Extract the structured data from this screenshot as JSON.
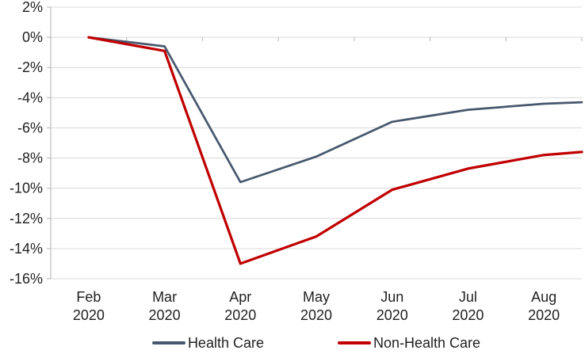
{
  "chart_data": {
    "type": "line",
    "categories": [
      "Feb 2020",
      "Mar 2020",
      "Apr 2020",
      "May 2020",
      "Jun 2020",
      "Jul 2020",
      "Aug 2020"
    ],
    "x_label_lines": [
      [
        "Feb",
        "2020"
      ],
      [
        "Mar",
        "2020"
      ],
      [
        "Apr",
        "2020"
      ],
      [
        "May",
        "2020"
      ],
      [
        "Jun",
        "2020"
      ],
      [
        "Jul",
        "2020"
      ],
      [
        "Aug",
        "2020"
      ]
    ],
    "series": [
      {
        "name": "Health Care",
        "color": "#47586E",
        "stroke_width": 2.75,
        "values": [
          0.0,
          -0.6,
          -9.6,
          -7.9,
          -5.6,
          -4.8,
          -4.4
        ],
        "edge_continuation_value": -4.3
      },
      {
        "name": "Non-Health Care",
        "color": "#C00000",
        "stroke_width": 3.25,
        "values": [
          0.0,
          -0.9,
          -15.0,
          -13.2,
          -10.1,
          -8.7,
          -7.8
        ],
        "edge_continuation_value": -7.6
      }
    ],
    "y_ticks": [
      {
        "value": 2,
        "label": "2%"
      },
      {
        "value": 0,
        "label": "0%"
      },
      {
        "value": -2,
        "label": "-2%"
      },
      {
        "value": -4,
        "label": "-4%"
      },
      {
        "value": -6,
        "label": "-6%"
      },
      {
        "value": -8,
        "label": "-8%"
      },
      {
        "value": -10,
        "label": "-10%"
      },
      {
        "value": -12,
        "label": "-12%"
      },
      {
        "value": -14,
        "label": "-14%"
      },
      {
        "value": -16,
        "label": "-16%"
      }
    ],
    "ylim": [
      -16,
      2
    ],
    "unit": "%",
    "grid": true,
    "legend_position": "bottom",
    "colors": {
      "grid": "#D9D9D9",
      "axis": "#BFBFBF",
      "text": "#1F1F1F",
      "background": "#FFFFFF"
    }
  }
}
